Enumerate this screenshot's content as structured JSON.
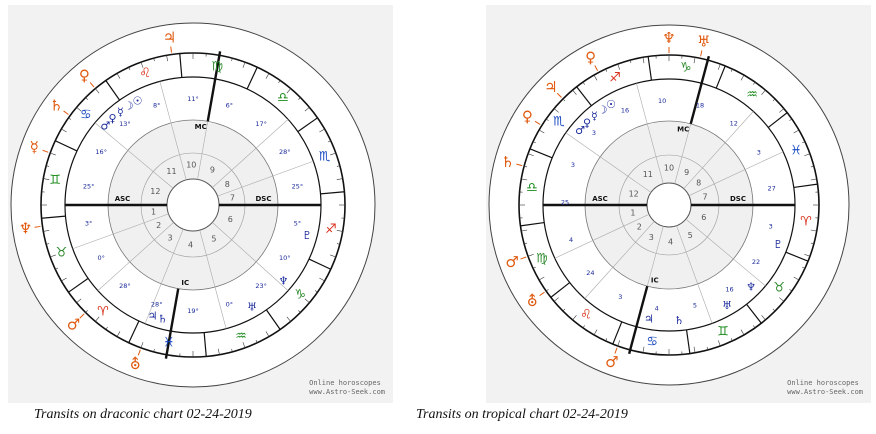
{
  "captions": {
    "left": "Transits on draconic chart 02-24-2019",
    "right": "Transits on tropical chart 02-24-2019"
  },
  "credit": {
    "line1": "Online horoscopes",
    "line2": "www.Astro-Seek.com"
  },
  "chart_labels": {
    "asc": "ASC",
    "dsc": "DSC",
    "mc": "MC",
    "ic": "IC"
  },
  "houses": [
    "1",
    "2",
    "3",
    "4",
    "5",
    "6",
    "7",
    "8",
    "9",
    "10",
    "11",
    "12"
  ],
  "colors": {
    "panel_bg": "#f2f2f2",
    "natal_planets": "#1a2a9a",
    "transit_planets": "#e05a10",
    "sign_fire": "#d8301a",
    "sign_earth": "#2e8b2e",
    "sign_air": "#1a8a1a",
    "sign_water": "#1a4ac0"
  },
  "left_chart": {
    "outer_glyphs": [
      "♃",
      "♀",
      "♄",
      "☿",
      "♆",
      "♂",
      "⛢"
    ],
    "natal_degrees": [
      "8°",
      "13°",
      "16°",
      "25°",
      "3°",
      "0°",
      "28°",
      "28°",
      "19°",
      "0°",
      "23°",
      "10°",
      "5°",
      "25°",
      "28°",
      "17°",
      "6°",
      "11°"
    ],
    "signs": [
      "♏",
      "♎",
      "♍",
      "♌",
      "♋",
      "♊",
      "♉",
      "♈",
      "♓",
      "♒",
      "♑",
      "♐"
    ]
  },
  "right_chart": {
    "outer_glyphs": [
      "♅",
      "♆",
      "♀",
      "♃",
      "♀",
      "♄",
      "♂",
      "⛢",
      "♂"
    ],
    "natal_degrees": [
      "16",
      "3",
      "3",
      "25",
      "4",
      "24",
      "3",
      "4",
      "5",
      "16",
      "22",
      "3",
      "27",
      "3",
      "12",
      "18",
      "10"
    ],
    "signs": [
      "♓",
      "♒",
      "♑",
      "♐",
      "♏",
      "♎",
      "♍",
      "♌",
      "♋",
      "♊",
      "♉",
      "♈"
    ]
  }
}
